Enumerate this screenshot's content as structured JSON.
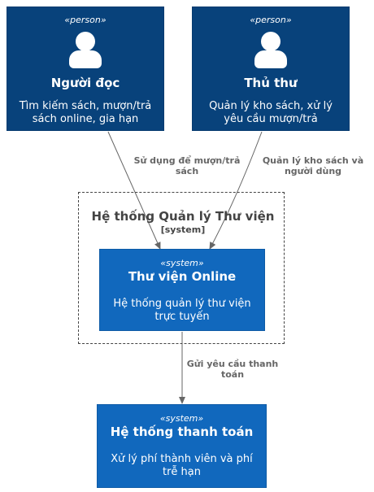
{
  "persons": [
    {
      "stereotype": "«person»",
      "name": "Người đọc",
      "description": "Tìm kiếm sách, mượn/trả sách online, gia hạn"
    },
    {
      "stereotype": "«person»",
      "name": "Thủ thư",
      "description": "Quản lý kho sách, xử lý yêu cầu mượn/trả"
    }
  ],
  "boundary": {
    "title": "Hệ thống Quản lý Thư viện",
    "type": "[system]"
  },
  "systems": [
    {
      "stereotype": "«system»",
      "name": "Thư viện Online",
      "description": "Hệ thống quản lý thư viện trực tuyến"
    },
    {
      "stereotype": "«system»",
      "name": "Hệ thống thanh toán",
      "description": "Xử lý phí thành viên và phí trễ hạn"
    }
  ],
  "relations": [
    {
      "label": "Sử dụng để mượn/trả sách"
    },
    {
      "label": "Quản lý kho sách và người dùng"
    },
    {
      "label": "Gửi yêu cầu thanh toán"
    }
  ],
  "colors": {
    "person": "#08427b",
    "system": "#1168bd",
    "boundary": "#444444",
    "edge": "#666666"
  }
}
